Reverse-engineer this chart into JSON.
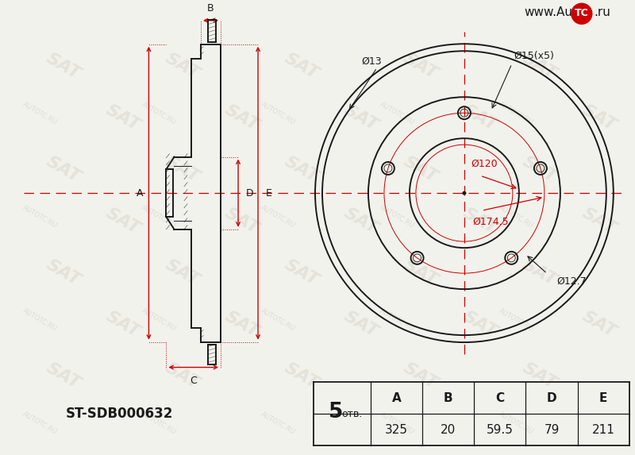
{
  "bg_color": "#f2f2ec",
  "line_color": "#1a1a1a",
  "red_color": "#cc0000",
  "part_number": "ST-SDB000632",
  "holes_count": "5",
  "holes_label": "отв.",
  "table_headers": [
    "A",
    "B",
    "C",
    "D",
    "E"
  ],
  "table_values": [
    "325",
    "20",
    "59.5",
    "79",
    "211"
  ],
  "watermark_url": "AUTOTC.RU",
  "sat_text": "SAT"
}
